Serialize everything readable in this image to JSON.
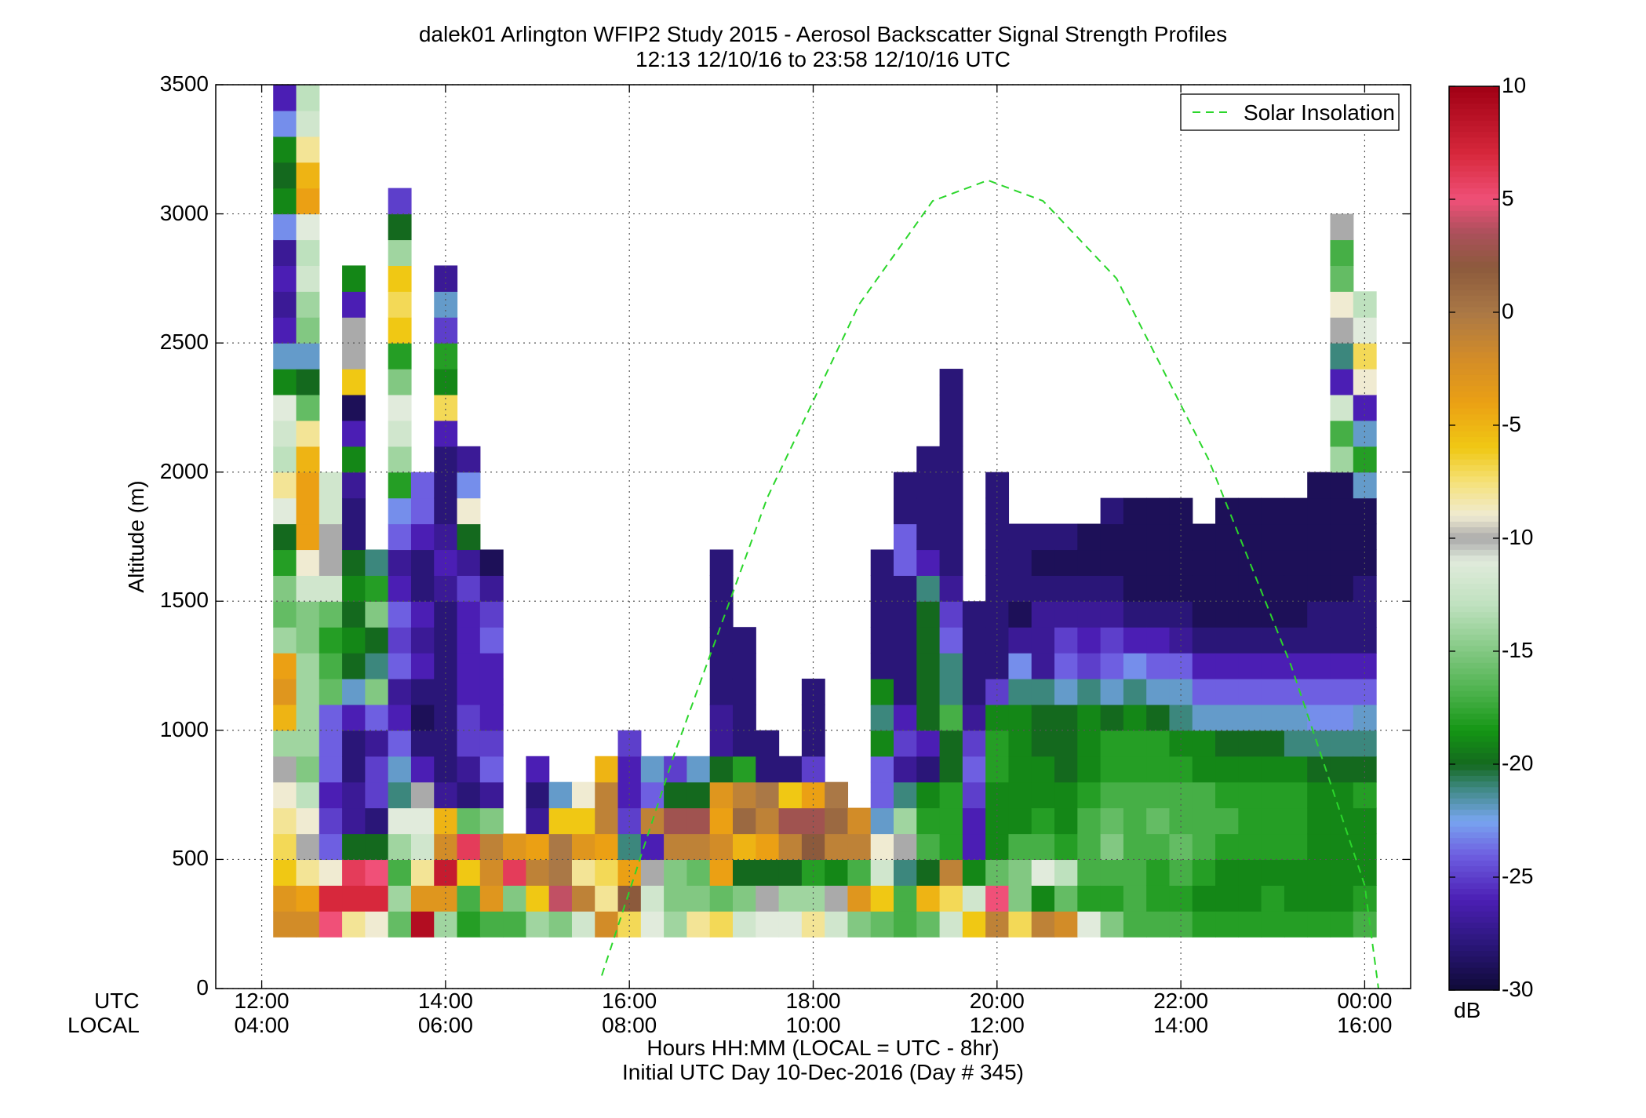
{
  "title_line1": "dalek01 Arlington WFIP2 Study 2015 - Aerosol Backscatter Signal Strength Profiles",
  "title_line2": "12:13 12/10/16 to 23:58 12/10/16  UTC",
  "ylabel": "Altitude (m)",
  "xlabel_line1": "Hours HH:MM  (LOCAL = UTC - 8hr)",
  "xlabel_line2": "Initial UTC Day 10-Dec-2016 (Day # 345)",
  "utc_row_label": "UTC",
  "local_row_label": "LOCAL",
  "legend_label": "Solar Insolation",
  "colorbar_unit": "dB",
  "chart_data": {
    "type": "heatmap",
    "title": "dalek01 Arlington WFIP2 Study 2015 - Aerosol Backscatter Signal Strength Profiles",
    "subtitle": "12:13 12/10/16 to 23:58 12/10/16  UTC",
    "xlabel": "Hours HH:MM  (LOCAL = UTC - 8hr)",
    "ylabel": "Altitude (m)",
    "x_range_hours_utc": [
      11.5,
      24.5
    ],
    "ylim": [
      0,
      3500
    ],
    "y_ticks": [
      "0",
      "500",
      "1000",
      "1500",
      "2000",
      "2500",
      "3000",
      "3500"
    ],
    "x_ticks_utc": [
      "12:00",
      "14:00",
      "16:00",
      "18:00",
      "20:00",
      "22:00",
      "00:00"
    ],
    "x_ticks_local": [
      "04:00",
      "06:00",
      "08:00",
      "10:00",
      "12:00",
      "14:00",
      "16:00"
    ],
    "grid": true,
    "colorbar": {
      "unit": "dB",
      "range": [
        -30,
        10
      ],
      "ticks": [
        "10",
        "5",
        "0",
        "-5",
        "-10",
        "-15",
        "-20",
        "-25",
        "-30"
      ]
    },
    "legend": {
      "position": "top-right",
      "entries": [
        "Solar Insolation"
      ]
    },
    "solar_insolation_curve": {
      "style": "dashed green",
      "points_utc_hours_altitude": [
        [
          15.7,
          50
        ],
        [
          16.5,
          920
        ],
        [
          17.5,
          1900
        ],
        [
          18.5,
          2650
        ],
        [
          19.3,
          3050
        ],
        [
          19.9,
          3130
        ],
        [
          20.5,
          3050
        ],
        [
          21.3,
          2750
        ],
        [
          22.3,
          2050
        ],
        [
          23.2,
          1250
        ],
        [
          24.0,
          400
        ],
        [
          24.15,
          0
        ]
      ]
    },
    "rows_altitude_m": [
      250,
      350,
      450,
      550,
      650,
      750,
      850,
      950,
      1050,
      1150,
      1250,
      1350,
      1450,
      1550,
      1650,
      1750,
      1850,
      1950,
      2050,
      2150,
      2250,
      2350,
      2450,
      2550,
      2650,
      2750,
      2850,
      2950,
      3050,
      3150,
      3250,
      3350,
      3450
    ],
    "time_bin_hours": 0.25,
    "cells": [
      [
        "12:15",
        "-2 -3 -6 -7 -8 -9 -10 -14 -5 -3 -4 -14 -16 -15 -18 -20 -11 -8 -13 -12 -11 -19 -22 -26 -27 -26 -27 -23 -19 -20 -19 -23 -26"
      ],
      [
        "12:30",
        "-2 -4 -8 -10 -9 -13 -15 -14 -14 -14 -14 -15 -15 -12 -9 -4 -4 -4 -5 -8 -16 -20 -22 -15 -14 -12 -13 -11 -4 -5 -8 -12 -13"
      ],
      [
        "12:45",
        "5 7 -9 -24 -25 -26 -24 -24 -24 -16 -17 -18 -16 -12 -10 -10 -12 -12"
      ],
      [
        "13:00",
        "-8 7 6 -20 -27 -27 -28 -28 -26 -22 -20 -19 -20 -19 -20 -28 -28 -27 -19 -26 -29 -6 -10 -10 -26 -19"
      ],
      [
        "13:15",
        "-9 7 5 -20 -28 -25 -25 -27 -24 -15 -21 -20 -15 -18 -21"
      ],
      [
        "13:30",
        "-16 -14 -17 -14 -11 -21 -22 -24 -26 -27 -24 -25 -24 -26 -27 -24 -23 -18 -14 -12 -11 -15 -18 -6 -7 -6 -14 -20 -25"
      ],
      [
        "13:45",
        "9 -3 -8 -12 -11 -10 -26 -28 -29 -28 -26 -27 -26 -28 -28 -26 -24 -24"
      ],
      [
        "14:00",
        "-14 -3 8 -2 -5 -27 -28 -28 -28 -28 -28 -28 -28 -27 -26 -27 -28 -28 -28 -26 -7 -19 -18 -25 -22 -27"
      ],
      [
        "14:15",
        "-18 -17 -6 6 -16 -28 -27 -25 -25 -26 -26 -26 -26 -25 -27 -20 -9 -23 -27"
      ],
      [
        "14:30",
        "-17 -3 -2 -1 -15 -27 -24 -25 -26 -26 -26 -24 -25 -27 -29"
      ],
      [
        "14:45",
        "-17 -15 6 -3"
      ],
      [
        "15:00",
        "-14 -6 -1 -4 -27 -28 -26"
      ],
      [
        "15:15",
        "-15 4 0 0 -6 -22"
      ],
      [
        "15:30",
        "-12 -1 -8 -3 -6 -9"
      ],
      [
        "15:45",
        "-2 -8 -7 -4 -1 -1 -5"
      ],
      [
        "16:00",
        "-7 2 -4 -21 -25 -26 -26 -25"
      ],
      [
        "16:15",
        "-11 -12 -10 -26 -1 -24 -22"
      ],
      [
        "16:30",
        "-14 -15 -15 -1 3 -20 -25"
      ],
      [
        "16:45",
        "-8 -15 -16 -1 3 -20 -22"
      ],
      [
        "17:00",
        "-7 -16 -4 -2 -4 -3 -20 -27 -27 -28 -28 -28 -28 -28 -28"
      ],
      [
        "17:15",
        "-12 -15 -20 -5 1 -1 -18 -28 -28 -28 -28 -28"
      ],
      [
        "17:30",
        "-11 -10 -20 -4 -1 0 -28 -28"
      ],
      [
        "17:45",
        "-11 -14 -20 -1 3 -6 -28"
      ],
      [
        "18:00",
        "-8 -14 -18 2 3 -4 -25 -28 -28 -28"
      ],
      [
        "18:15",
        "-12 -10 -19 -1 1 0"
      ],
      [
        "18:30",
        "-15 -3 -17 -1 -2"
      ],
      [
        "18:45",
        "-16 -6 -12 -9 -22 -24 -24 -19 -21 -19 -28 -28 -28 -28 -28"
      ],
      [
        "19:00",
        "-17 -17 -21 -10 -14 -21 -27 -25 -26 -28 -28 -28 -28 -28 -24 -24 -28 -28"
      ],
      [
        "19:15",
        "-16 -5 -20 -17 -18 -19 -28 -26 -20 -20 -20 -20 -20 -21 -26 -28 -28 -28 -28"
      ],
      [
        "19:30",
        "-12 -7 -1 -18 -18 -18 -20 -20 -17 -21 -21 -24 -25 -27 -28 -28 -28 -28 -28 -28 -28 -28"
      ],
      [
        "19:45",
        "-6 -12 -19 -26 -26 -25 -24 -25 -27 -28 -28 -28 -28"
      ],
      [
        "20:00",
        "-1 5 -16 -19 -19 -19 -18 -18 -19 -25 -28 -28 -28 -28 -28 -28 -28 -28"
      ],
      [
        "20:15",
        "-7 -15 -15 -17 -19 -19 -19 -19 -19 -21 -23 -27 -29 -28 -28 -28"
      ],
      [
        "20:30",
        "-1 -19 -11 -17 -18 -19 -19 -20 -20 -21 -27 -27 -27 -28 -29 -28"
      ],
      [
        "20:45",
        "-2 -16 -13 -18 -19 -19 -20 -20 -20 -22 -24 -25 -27 -28 -29 -28"
      ],
      [
        "21:00",
        "-11 -18 -17 -17 -17 -18 -19 -19 -19 -21 -25 -26 -27 -28 -29 -29"
      ],
      [
        "21:15",
        "-15 -18 -17 -15 -16 -17 -18 -18 -20 -22 -24 -25 -27 -28 -29 -29 -28"
      ],
      [
        "21:30",
        "-17 -17 -17 -17 -17 -17 -18 -18 -19 -21 -23 -26 -28 -29 -29 -29 -29"
      ],
      [
        "21:45",
        "-17 -18 -18 -17 -16 -17 -18 -18 -20 -22 -24 -26 -28 -29 -29 -29 -29"
      ],
      [
        "22:00",
        "-17 -18 -17 -16 -17 -17 -18 -19 -21 -22 -24 -27 -28 -29 -29 -29 -29"
      ],
      [
        "22:15",
        "-18 -19 -18 -17 -17 -17 -19 -19 -22 -24 -26 -28 -29 -29 -29 -29"
      ],
      [
        "22:30",
        "-18 -19 -19 -18 -17 -18 -19 -20 -22 -24 -26 -28 -29 -29 -29 -29 -29"
      ],
      [
        "22:45",
        "-18 -19 -19 -18 -18 -18 -19 -20 -22 -24 -26 -28 -29 -29 -29 -29 -29"
      ],
      [
        "23:00",
        "-18 -18 -19 -18 -18 -18 -19 -20 -22 -24 -26 -28 -29 -29 -29 -29 -29"
      ],
      [
        "23:15",
        "-18 -19 -19 -18 -18 -18 -19 -21 -22 -24 -26 -28 -29 -29 -29 -29 -29"
      ],
      [
        "23:30",
        "-18 -19 -19 -19 -19 -19 -20 -21 -23 -24 -26 -28 -28 -29 -29 -29 -29 -29"
      ],
      [
        "23:45",
        "-18 -19 -19 -19 -19 -19 -20 -21 -23 -24 -26 -28 -28 -29 -29 -29 -29 -29 -14 -17 -12 -26 -21 -10 -9 -16 -17 -10"
      ],
      [
        "24:00",
        "-17 -18 -19 -19 -19 -18 -20 -21 -22 -24 -26 -28 -28 -28 -29 -29 -29 -22 -18 -22 -26 -9 -7 -11 -13"
      ]
    ]
  }
}
